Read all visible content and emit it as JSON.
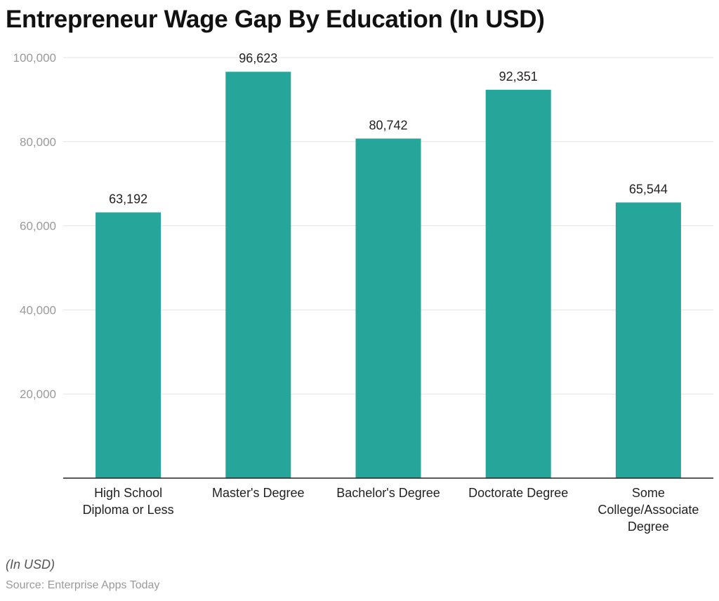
{
  "chart_data": {
    "type": "bar",
    "title": "Entrepreneur Wage Gap By Education (In USD)",
    "categories": [
      [
        "High School",
        "Diploma or Less"
      ],
      [
        "Master's Degree"
      ],
      [
        "Bachelor's Degree"
      ],
      [
        "Doctorate Degree"
      ],
      [
        "Some",
        "College/Associate",
        "Degree"
      ]
    ],
    "values": [
      63192,
      96623,
      80742,
      92351,
      65544
    ],
    "value_labels": [
      "63,192",
      "96,623",
      "80,742",
      "92,351",
      "65,544"
    ],
    "yticks": [
      20000,
      40000,
      60000,
      80000,
      100000
    ],
    "ytick_labels": [
      "20,000",
      "40,000",
      "60,000",
      "80,000",
      "100,000"
    ],
    "ylim": [
      0,
      100000
    ],
    "grid": true,
    "bar_color": "#26a69a",
    "note": "(In USD)",
    "source": "Source: Enterprise Apps Today"
  }
}
